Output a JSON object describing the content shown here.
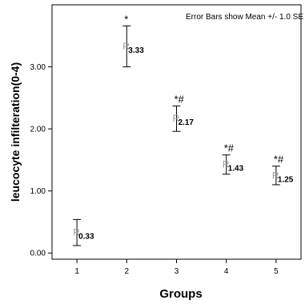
{
  "chart_data": {
    "type": "scatter",
    "xlabel": "Groups",
    "ylabel": "leucocyte infilteration(0-4)",
    "annotation": "Error Bars show Mean +/- 1.0 SE",
    "categories": [
      "1",
      "2",
      "3",
      "4",
      "5"
    ],
    "means": [
      0.33,
      3.33,
      2.17,
      1.43,
      1.25
    ],
    "mean_labels": [
      "0.33",
      "3.33",
      "2.17",
      "1.43",
      "1.25"
    ],
    "error_lower": [
      0.12,
      3.0,
      1.96,
      1.27,
      1.1
    ],
    "error_upper": [
      0.54,
      3.66,
      2.37,
      1.58,
      1.4
    ],
    "significance": [
      "",
      "*",
      "*#",
      "*#",
      "*#"
    ],
    "yticks": [
      "0.00",
      "1.00",
      "2.00",
      "3.00"
    ],
    "ytick_values": [
      0,
      1,
      2,
      3
    ],
    "ylim": [
      -0.1,
      4.0
    ],
    "xlim": [
      0.5,
      5.5
    ],
    "grid": false,
    "marker_glyph": "R"
  }
}
